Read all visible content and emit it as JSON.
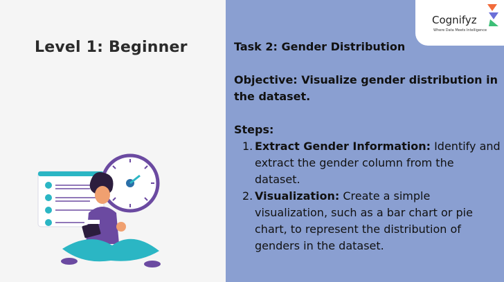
{
  "left": {
    "level_title": "Level 1: Beginner"
  },
  "logo": {
    "name": "Cognifyz",
    "tagline": "Where Data Meets Intelligence"
  },
  "content": {
    "task_title": "Task 2: Gender Distribution",
    "objective": "Objective: Visualize gender distribution in the dataset.",
    "steps_label": "Steps:",
    "steps": [
      {
        "num": "1.",
        "head": "Extract Gender Information:",
        "text": " Identify and extract the gender column from the dataset."
      },
      {
        "num": "2.",
        "head": "Visualization:",
        "text": " Create a simple visualization, such as a bar chart or pie chart, to represent the distribution of genders in the dataset."
      }
    ]
  },
  "colors": {
    "right_panel": "#8a9fd1",
    "left_panel": "#f5f5f5",
    "teal": "#2bb6c4",
    "purple": "#6b4aa1"
  }
}
